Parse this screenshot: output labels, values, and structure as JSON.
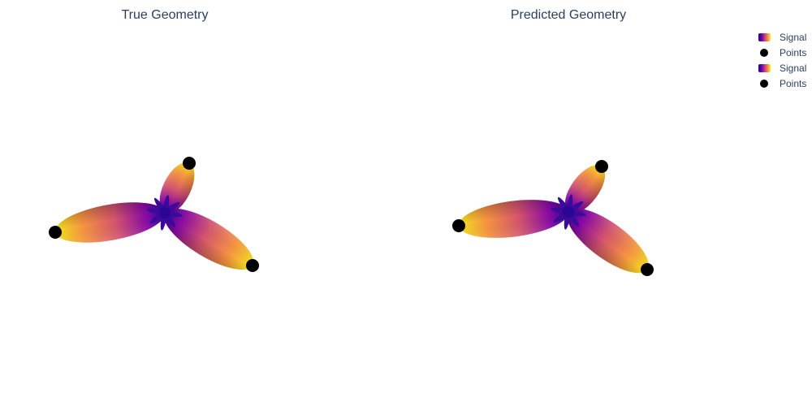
{
  "chart_data": [
    {
      "type": "scatter",
      "title": "True Geometry",
      "series": [
        {
          "name": "Signal",
          "kind": "surface",
          "colorscale": "plasma"
        },
        {
          "name": "Points",
          "kind": "scatter3d",
          "color": "#000000"
        }
      ],
      "lobes": [
        {
          "direction": "left",
          "length": 1.0
        },
        {
          "direction": "down-right",
          "length": 0.82
        },
        {
          "direction": "up",
          "length": 0.62
        }
      ]
    },
    {
      "type": "scatter",
      "title": "Predicted Geometry",
      "series": [
        {
          "name": "Signal",
          "kind": "surface",
          "colorscale": "plasma"
        },
        {
          "name": "Points",
          "kind": "scatter3d",
          "color": "#000000"
        }
      ],
      "lobes": [
        {
          "direction": "left",
          "length": 1.0
        },
        {
          "direction": "down-right",
          "length": 0.82
        },
        {
          "direction": "up",
          "length": 0.62
        }
      ]
    }
  ],
  "legend": {
    "items": [
      {
        "label": "Signal",
        "kind": "surface"
      },
      {
        "label": "Points",
        "kind": "marker"
      },
      {
        "label": "Signal",
        "kind": "surface"
      },
      {
        "label": "Points",
        "kind": "marker"
      }
    ]
  },
  "colors": {
    "title_text": "#2a3f5f",
    "plasma_low": "#0d0887",
    "plasma_mid": "#cc4778",
    "plasma_high": "#f0f921",
    "points": "#000000"
  }
}
